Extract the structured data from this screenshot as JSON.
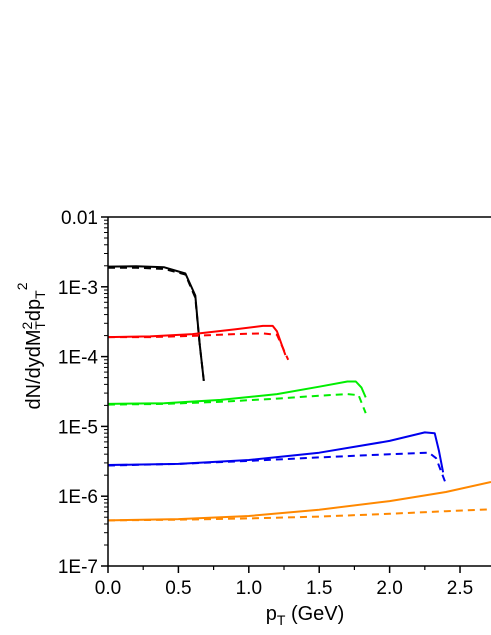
{
  "chart_data": {
    "type": "line",
    "title": "",
    "xlabel": {
      "main": "p",
      "sub": "T",
      "rest": " (GeV)"
    },
    "ylabel": {
      "p1": "dN/dydM",
      "sup1": "2",
      "sub1": "T",
      "p2": "dp",
      "sub2": "T",
      "sup2": "2"
    },
    "xlim": [
      0.0,
      2.72
    ],
    "ylim": [
      1e-07,
      0.01
    ],
    "yscale": "log",
    "grid": false,
    "legend": "none",
    "x_ticks": [
      {
        "value": 0.0,
        "label": "0.0"
      },
      {
        "value": 0.5,
        "label": "0.5"
      },
      {
        "value": 1.0,
        "label": "1.0"
      },
      {
        "value": 1.5,
        "label": "1.5"
      },
      {
        "value": 2.0,
        "label": "2.0"
      },
      {
        "value": 2.5,
        "label": "2.5"
      }
    ],
    "y_ticks": [
      {
        "value": 0.01,
        "label": "0.01"
      },
      {
        "value": 0.001,
        "label": "1E-3"
      },
      {
        "value": 0.0001,
        "label": "1E-4"
      },
      {
        "value": 1e-05,
        "label": "1E-5"
      },
      {
        "value": 1e-06,
        "label": "1E-6"
      },
      {
        "value": 1e-07,
        "label": "1E-7"
      }
    ],
    "series": [
      {
        "color": "#000000",
        "style": "solid",
        "points": [
          [
            0.0,
            0.00195
          ],
          [
            0.2,
            0.00197
          ],
          [
            0.4,
            0.0019
          ],
          [
            0.55,
            0.00155
          ],
          [
            0.62,
            0.00075
          ],
          [
            0.65,
            0.00016
          ],
          [
            0.68,
            4.5e-05
          ]
        ]
      },
      {
        "color": "#000000",
        "style": "dashed",
        "points": [
          [
            0.0,
            0.00188
          ],
          [
            0.2,
            0.00188
          ],
          [
            0.4,
            0.0018
          ],
          [
            0.55,
            0.0015
          ],
          [
            0.62,
            0.0007
          ],
          [
            0.65,
            0.00016
          ],
          [
            0.68,
            4.5e-05
          ]
        ]
      },
      {
        "color": "#ff0000",
        "style": "solid",
        "points": [
          [
            0.0,
            0.00019
          ],
          [
            0.3,
            0.000195
          ],
          [
            0.6,
            0.00021
          ],
          [
            0.9,
            0.000245
          ],
          [
            1.1,
            0.000275
          ],
          [
            1.17,
            0.000275
          ],
          [
            1.2,
            0.00023
          ],
          [
            1.26,
            0.000105
          ]
        ]
      },
      {
        "color": "#ff0000",
        "style": "dashed",
        "points": [
          [
            0.0,
            0.00019
          ],
          [
            0.3,
            0.00019
          ],
          [
            0.6,
            0.000198
          ],
          [
            0.9,
            0.00021
          ],
          [
            1.1,
            0.000215
          ],
          [
            1.2,
            0.000205
          ],
          [
            1.28,
            9e-05
          ]
        ]
      },
      {
        "color": "#00ee00",
        "style": "solid",
        "points": [
          [
            0.0,
            2.1e-05
          ],
          [
            0.4,
            2.15e-05
          ],
          [
            0.8,
            2.4e-05
          ],
          [
            1.2,
            2.9e-05
          ],
          [
            1.5,
            3.7e-05
          ],
          [
            1.7,
            4.4e-05
          ],
          [
            1.76,
            4.4e-05
          ],
          [
            1.8,
            3.6e-05
          ],
          [
            1.83,
            2.6e-05
          ]
        ]
      },
      {
        "color": "#00ee00",
        "style": "dashed",
        "points": [
          [
            0.0,
            2.05e-05
          ],
          [
            0.4,
            2.1e-05
          ],
          [
            0.8,
            2.25e-05
          ],
          [
            1.2,
            2.5e-05
          ],
          [
            1.5,
            2.75e-05
          ],
          [
            1.7,
            2.9e-05
          ],
          [
            1.78,
            2.8e-05
          ],
          [
            1.83,
            1.55e-05
          ]
        ]
      },
      {
        "color": "#0000ee",
        "style": "solid",
        "points": [
          [
            0.0,
            2.8e-06
          ],
          [
            0.5,
            2.9e-06
          ],
          [
            1.0,
            3.3e-06
          ],
          [
            1.5,
            4.2e-06
          ],
          [
            2.0,
            6.2e-06
          ],
          [
            2.25,
            8.2e-06
          ],
          [
            2.32,
            8e-06
          ],
          [
            2.35,
            4.5e-06
          ],
          [
            2.38,
            2.2e-06
          ]
        ]
      },
      {
        "color": "#0000ee",
        "style": "dashed",
        "points": [
          [
            0.0,
            2.75e-06
          ],
          [
            0.5,
            2.9e-06
          ],
          [
            1.0,
            3.2e-06
          ],
          [
            1.5,
            3.6e-06
          ],
          [
            2.0,
            4e-06
          ],
          [
            2.28,
            4.2e-06
          ],
          [
            2.33,
            3.5e-06
          ],
          [
            2.4,
            1.5e-06
          ]
        ]
      },
      {
        "color": "#ff8800",
        "style": "solid",
        "points": [
          [
            0.0,
            4.5e-07
          ],
          [
            0.5,
            4.7e-07
          ],
          [
            1.0,
            5.2e-07
          ],
          [
            1.5,
            6.4e-07
          ],
          [
            2.0,
            8.5e-07
          ],
          [
            2.4,
            1.15e-06
          ],
          [
            2.72,
            1.6e-06
          ]
        ]
      },
      {
        "color": "#ff8800",
        "style": "dashed",
        "points": [
          [
            0.0,
            4.5e-07
          ],
          [
            0.5,
            4.6e-07
          ],
          [
            1.0,
            4.8e-07
          ],
          [
            1.5,
            5.1e-07
          ],
          [
            2.0,
            5.6e-07
          ],
          [
            2.4,
            6.1e-07
          ],
          [
            2.72,
            6.5e-07
          ]
        ]
      }
    ]
  }
}
